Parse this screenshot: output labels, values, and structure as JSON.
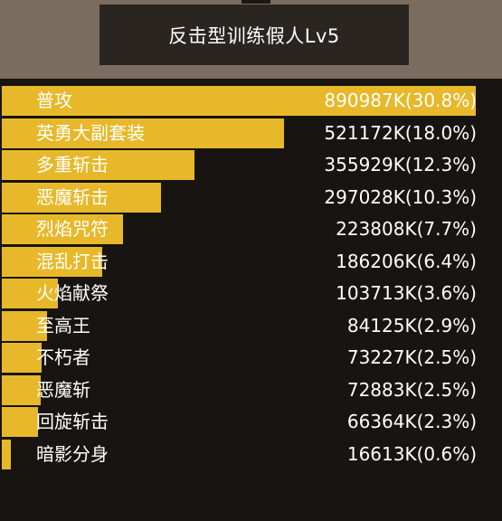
{
  "header": {
    "title": "反击型训练假人Lv5"
  },
  "colors": {
    "bar": "#e7b829",
    "background": "#171411",
    "header_bg": "#7a6d60",
    "title_panel": "#2a2520"
  },
  "damage_rows": [
    {
      "name": "普攻",
      "value": "890987K(30.8%)",
      "share": 1.0
    },
    {
      "name": "英勇大副套装",
      "value": "521172K(18.0%)",
      "share": 0.596
    },
    {
      "name": "多重斩击",
      "value": "355929K(12.3%)",
      "share": 0.407
    },
    {
      "name": "恶魔斩击",
      "value": "297028K(10.3%)",
      "share": 0.336
    },
    {
      "name": "烈焰咒符",
      "value": "223808K(7.7%)",
      "share": 0.256
    },
    {
      "name": "混乱打击",
      "value": "186206K(6.4%)",
      "share": 0.212
    },
    {
      "name": "火焰献祭",
      "value": "103713K(3.6%)",
      "share": 0.118
    },
    {
      "name": "至高王",
      "value": "84125K(2.9%)",
      "share": 0.096
    },
    {
      "name": "不朽者",
      "value": "73227K(2.5%)",
      "share": 0.084
    },
    {
      "name": "恶魔斩",
      "value": "72883K(2.5%)",
      "share": 0.083
    },
    {
      "name": "回旋斩击",
      "value": "66364K(2.3%)",
      "share": 0.076
    },
    {
      "name": "暗影分身",
      "value": "16613K(0.6%)",
      "share": 0.019
    }
  ]
}
